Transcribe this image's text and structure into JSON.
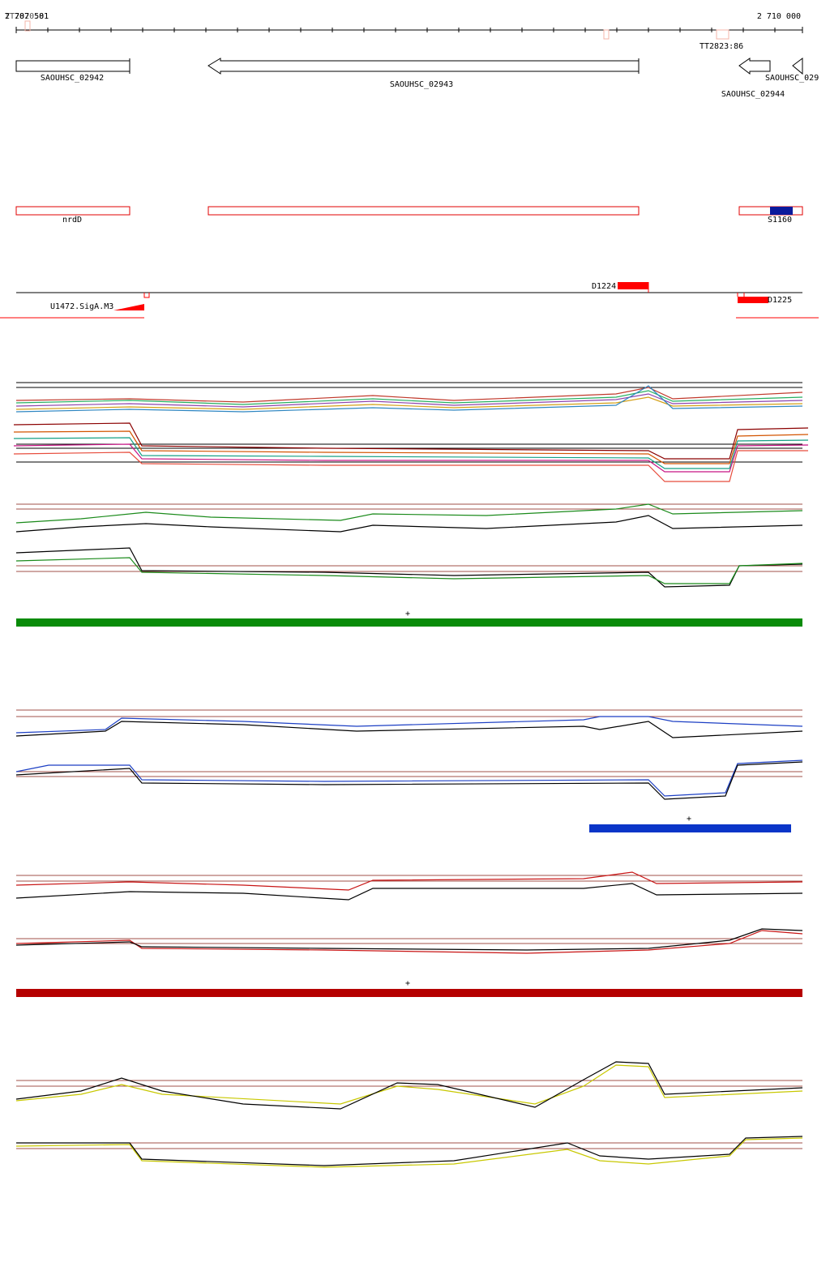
{
  "ruler": {
    "start_label": "2 707 501",
    "end_label": "2 710 000",
    "left_marker": "TT2820:81",
    "right_marker": "TT2823:86"
  },
  "genes": [
    "SAOUHSC_02942",
    "SAOUHSC_02943",
    "SAOUHSC_02944",
    "SAOUHSC_029"
  ],
  "regions": [
    "nrdD",
    "S1160"
  ],
  "sites": [
    "D1224",
    "D1225",
    "U1472.SigA.M3"
  ],
  "strand_marks": [
    "+",
    "+",
    "+"
  ]
}
